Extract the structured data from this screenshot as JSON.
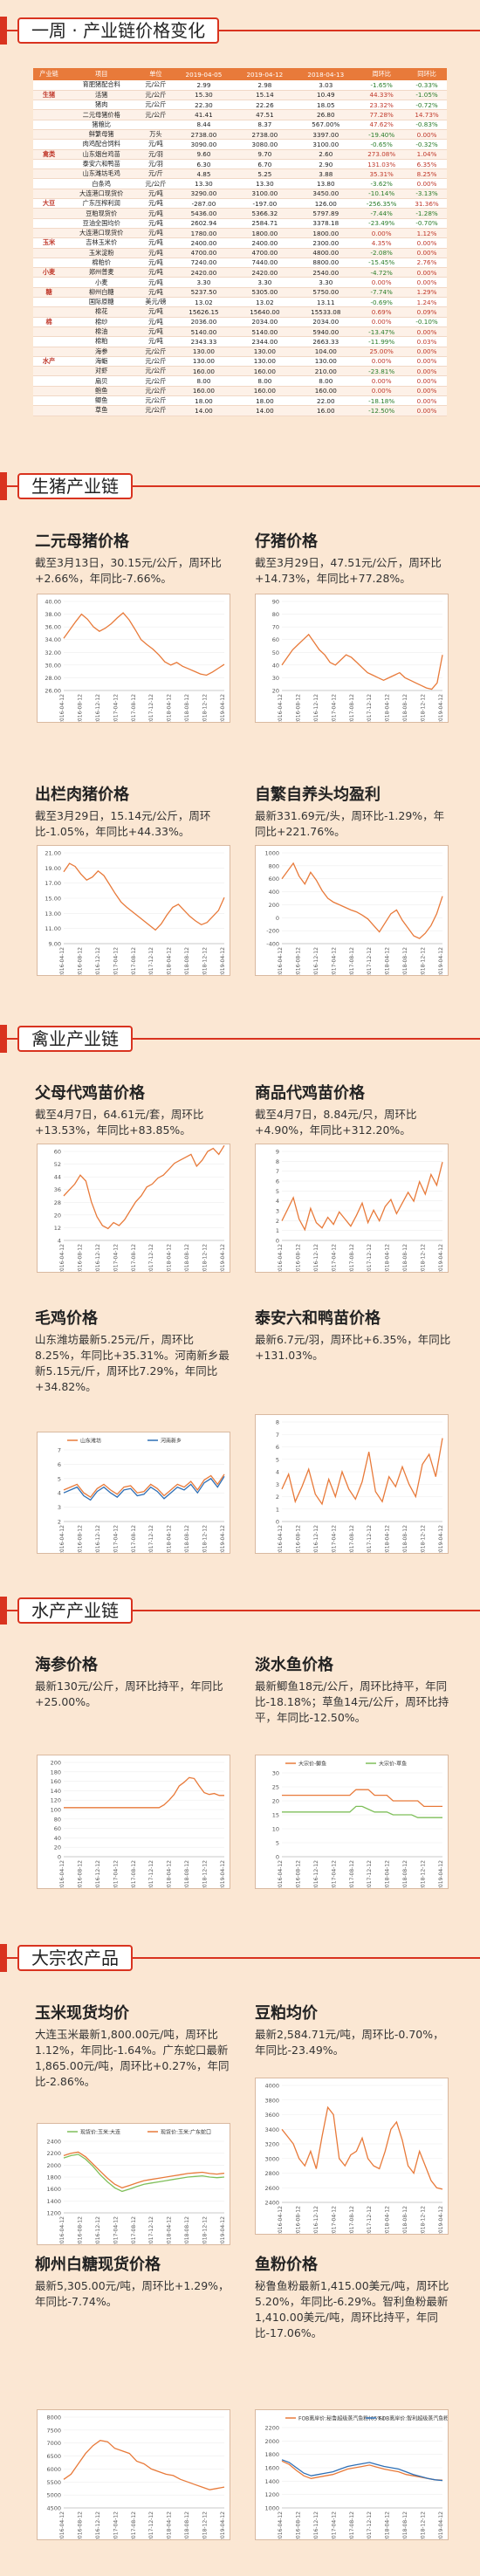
{
  "sections": {
    "weekly": "一周 · 产业链价格变化",
    "hog": "生猪产业链",
    "poultry": "禽业产业链",
    "aqua": "水产产业链",
    "bulk": "大宗农产品"
  },
  "table": {
    "headers": [
      "产业链",
      "项目",
      "单位",
      "2019-04-05",
      "2019-04-12",
      "2018-04-13",
      "周环比",
      "同环比"
    ],
    "rows": [
      {
        "cat": "",
        "item": "育肥猪配合料",
        "unit": "元/公斤",
        "a": "2.99",
        "b": "2.98",
        "c": "3.03",
        "wow": "-1.65%",
        "yoy": "-0.33%"
      },
      {
        "cat": "生猪",
        "item": "活猪",
        "unit": "元/公斤",
        "a": "15.30",
        "b": "15.14",
        "c": "10.49",
        "wow": "44.33%",
        "yoy": "-1.05%"
      },
      {
        "cat": "",
        "item": "猪肉",
        "unit": "元/公斤",
        "a": "22.30",
        "b": "22.26",
        "c": "18.05",
        "wow": "23.32%",
        "yoy": "-0.72%"
      },
      {
        "cat": "",
        "item": "二元母猪价格",
        "unit": "元/公斤",
        "a": "41.41",
        "b": "47.51",
        "c": "26.80",
        "wow": "77.28%",
        "yoy": "14.73%"
      },
      {
        "cat": "",
        "item": "猪粮比",
        "unit": "",
        "a": "8.44",
        "b": "8.37",
        "c": "567.00%",
        "wow": "47.62%",
        "yoy": "-0.83%"
      },
      {
        "cat": "",
        "item": "鲜繁母猪",
        "unit": "万头",
        "a": "2738.00",
        "b": "2738.00",
        "c": "3397.00",
        "wow": "-19.40%",
        "yoy": "0.00%"
      },
      {
        "cat": "",
        "item": "肉鸡配合饲料",
        "unit": "元/吨",
        "a": "3090.00",
        "b": "3080.00",
        "c": "3100.00",
        "wow": "-0.65%",
        "yoy": "-0.32%"
      },
      {
        "cat": "禽类",
        "item": "山东烟台鸡苗",
        "unit": "元/羽",
        "a": "9.60",
        "b": "9.70",
        "c": "2.60",
        "wow": "273.08%",
        "yoy": "1.04%"
      },
      {
        "cat": "",
        "item": "泰安六和鸭苗",
        "unit": "元/羽",
        "a": "6.30",
        "b": "6.70",
        "c": "2.90",
        "wow": "131.03%",
        "yoy": "6.35%"
      },
      {
        "cat": "",
        "item": "山东潍坊毛鸡",
        "unit": "元/斤",
        "a": "4.85",
        "b": "5.25",
        "c": "3.88",
        "wow": "35.31%",
        "yoy": "8.25%"
      },
      {
        "cat": "",
        "item": "白条鸡",
        "unit": "元/公斤",
        "a": "13.30",
        "b": "13.30",
        "c": "13.80",
        "wow": "-3.62%",
        "yoy": "0.00%"
      },
      {
        "cat": "",
        "item": "大连港口现货价",
        "unit": "元/吨",
        "a": "3290.00",
        "b": "3100.00",
        "c": "3450.00",
        "wow": "-10.14%",
        "yoy": "-3.13%"
      },
      {
        "cat": "大豆",
        "item": "广东压榨利润",
        "unit": "元/吨",
        "a": "-287.00",
        "b": "-197.00",
        "c": "126.00",
        "wow": "-256.35%",
        "yoy": "31.36%"
      },
      {
        "cat": "",
        "item": "豆粕现货价",
        "unit": "元/吨",
        "a": "5436.00",
        "b": "5366.32",
        "c": "5797.89",
        "wow": "-7.44%",
        "yoy": "-1.28%"
      },
      {
        "cat": "",
        "item": "豆油全国均价",
        "unit": "元/吨",
        "a": "2602.94",
        "b": "2584.71",
        "c": "3378.18",
        "wow": "-23.49%",
        "yoy": "-0.70%"
      },
      {
        "cat": "",
        "item": "大连港口现货价",
        "unit": "元/吨",
        "a": "1780.00",
        "b": "1800.00",
        "c": "1800.00",
        "wow": "0.00%",
        "yoy": "1.12%"
      },
      {
        "cat": "玉米",
        "item": "吉林玉米价",
        "unit": "元/吨",
        "a": "2400.00",
        "b": "2400.00",
        "c": "2300.00",
        "wow": "4.35%",
        "yoy": "0.00%"
      },
      {
        "cat": "",
        "item": "玉米淀粉",
        "unit": "元/吨",
        "a": "4700.00",
        "b": "4700.00",
        "c": "4800.00",
        "wow": "-2.08%",
        "yoy": "0.00%"
      },
      {
        "cat": "",
        "item": "棉粕价",
        "unit": "元/吨",
        "a": "7240.00",
        "b": "7440.00",
        "c": "8800.00",
        "wow": "-15.45%",
        "yoy": "2.76%"
      },
      {
        "cat": "小麦",
        "item": "郑州普麦",
        "unit": "元/吨",
        "a": "2420.00",
        "b": "2420.00",
        "c": "2540.00",
        "wow": "-4.72%",
        "yoy": "0.00%"
      },
      {
        "cat": "",
        "item": "小麦",
        "unit": "元/吨",
        "a": "3.30",
        "b": "3.30",
        "c": "3.30",
        "wow": "0.00%",
        "yoy": "0.00%"
      },
      {
        "cat": "糖",
        "item": "柳州白糖",
        "unit": "元/吨",
        "a": "5237.50",
        "b": "5305.00",
        "c": "5750.00",
        "wow": "-7.74%",
        "yoy": "1.29%"
      },
      {
        "cat": "",
        "item": "国际原糖",
        "unit": "美元/磅",
        "a": "13.02",
        "b": "13.02",
        "c": "13.11",
        "wow": "-0.69%",
        "yoy": "1.24%"
      },
      {
        "cat": "",
        "item": "棉花",
        "unit": "元/吨",
        "a": "15626.15",
        "b": "15640.00",
        "c": "15533.08",
        "wow": "0.69%",
        "yoy": "0.09%"
      },
      {
        "cat": "棉",
        "item": "棉纱",
        "unit": "元/吨",
        "a": "2036.00",
        "b": "2034.00",
        "c": "2034.00",
        "wow": "0.00%",
        "yoy": "-0.10%"
      },
      {
        "cat": "",
        "item": "棉油",
        "unit": "元/吨",
        "a": "5140.00",
        "b": "5140.00",
        "c": "5940.00",
        "wow": "-13.47%",
        "yoy": "0.00%"
      },
      {
        "cat": "",
        "item": "棉粕",
        "unit": "元/吨",
        "a": "2343.33",
        "b": "2344.00",
        "c": "2663.33",
        "wow": "-11.99%",
        "yoy": "0.03%"
      },
      {
        "cat": "",
        "item": "海参",
        "unit": "元/公斤",
        "a": "130.00",
        "b": "130.00",
        "c": "104.00",
        "wow": "25.00%",
        "yoy": "0.00%"
      },
      {
        "cat": "水产",
        "item": "海蛎",
        "unit": "元/公斤",
        "a": "130.00",
        "b": "130.00",
        "c": "130.00",
        "wow": "0.00%",
        "yoy": "0.00%"
      },
      {
        "cat": "",
        "item": "对虾",
        "unit": "元/公斤",
        "a": "160.00",
        "b": "160.00",
        "c": "210.00",
        "wow": "-23.81%",
        "yoy": "0.00%"
      },
      {
        "cat": "",
        "item": "扇贝",
        "unit": "元/公斤",
        "a": "8.00",
        "b": "8.00",
        "c": "8.00",
        "wow": "0.00%",
        "yoy": "0.00%"
      },
      {
        "cat": "",
        "item": "鲍鱼",
        "unit": "元/公斤",
        "a": "160.00",
        "b": "160.00",
        "c": "160.00",
        "wow": "0.00%",
        "yoy": "0.00%"
      },
      {
        "cat": "",
        "item": "鲫鱼",
        "unit": "元/公斤",
        "a": "18.00",
        "b": "18.00",
        "c": "22.00",
        "wow": "-18.18%",
        "yoy": "0.00%"
      },
      {
        "cat": "",
        "item": "草鱼",
        "unit": "元/公斤",
        "a": "14.00",
        "b": "14.00",
        "c": "16.00",
        "wow": "-12.50%",
        "yoy": "0.00%"
      }
    ]
  },
  "cards": {
    "sow": {
      "title": "二元母猪价格",
      "text": "截至3月13日，30.15元/公斤，周环比+2.66%，年同比-7.66%。"
    },
    "piglet": {
      "title": "仔猪价格",
      "text": "截至3月29日，47.51元/公斤，周环比+14.73%，年同比+77.28%。"
    },
    "hog": {
      "title": "出栏肉猪价格",
      "text": "截至3月29日，15.14元/公斤，周环比-1.05%，年同比+44.33%。"
    },
    "profit": {
      "title": "自繁自养头均盈利",
      "text": "最新331.69元/头，周环比-1.29%，年同比+221.76%。"
    },
    "parent": {
      "title": "父母代鸡苗价格",
      "text": "截至4月7日，64.61元/套，周环比+13.53%，年同比+83.85%。"
    },
    "chick": {
      "title": "商品代鸡苗价格",
      "text": "截至4月7日，8.84元/只，周环比+4.90%，年同比+312.20%。"
    },
    "broiler": {
      "title": "毛鸡价格",
      "text": "山东潍坊最新5.25元/斤，周环比8.25%，年同比+35.31%。河南新乡最新5.15元/斤，周环比7.29%，年同比+34.82%。"
    },
    "duck": {
      "title": "泰安六和鸭苗价格",
      "text": "最新6.7元/羽，周环比+6.35%，年同比+131.03%。"
    },
    "seacuc": {
      "title": "海参价格",
      "text": "最新130元/公斤，周环比持平，年同比+25.00%。"
    },
    "fresh": {
      "title": "淡水鱼价格",
      "text": "最新鲫鱼18元/公斤，周环比持平，年同比-18.18%；草鱼14元/公斤，周环比持平，年同比-12.50%。"
    },
    "corn": {
      "title": "玉米现货均价",
      "text": "大连玉米最新1,800.00元/吨，周环比1.12%，年同比-1.64%。广东蛇口最新1,865.00元/吨，周环比+0.27%，年同比-2.86%。"
    },
    "meal": {
      "title": "豆粕均价",
      "text": "最新2,584.71元/吨，周环比-0.70%，年同比-23.49%。"
    },
    "sugar": {
      "title": "柳州白糖现货价格",
      "text": "最新5,305.00元/吨，周环比+1.29%，年同比-7.74%。"
    },
    "fish": {
      "title": "鱼粉价格",
      "text": "秘鲁鱼粉最新1,415.00美元/吨，周环比5.20%，年同比-6.29%。智利鱼粉最新1,410.00美元/吨，周环比持平，年同比-17.06%。"
    }
  },
  "chart_data": [
    {
      "id": "sow",
      "type": "line",
      "ylim": [
        26,
        40
      ],
      "yticks": [
        "40.00",
        "38.00",
        "36.00",
        "34.00",
        "32.00",
        "30.00",
        "28.00",
        "26.00"
      ],
      "color": "#e87a3a",
      "values": [
        34.2,
        35.5,
        36.8,
        38.0,
        37.2,
        36.0,
        35.3,
        35.8,
        36.5,
        37.4,
        38.2,
        37.1,
        35.6,
        34.0,
        33.2,
        32.5,
        31.6,
        30.5,
        30.0,
        30.4,
        29.8,
        29.4,
        29.0,
        28.6,
        28.4,
        28.9,
        29.5,
        30.1
      ]
    },
    {
      "id": "piglet",
      "type": "line",
      "ylim": [
        20,
        90
      ],
      "yticks": [
        "90",
        "80",
        "70",
        "60",
        "50",
        "40",
        "30",
        "20"
      ],
      "color": "#e87a3a",
      "values": [
        40,
        46,
        52,
        56,
        60,
        64,
        58,
        52,
        48,
        42,
        40,
        44,
        48,
        46,
        42,
        38,
        34,
        32,
        30,
        28,
        30,
        32,
        34,
        30,
        28,
        26,
        24,
        22,
        21,
        26,
        48
      ]
    },
    {
      "id": "hog",
      "type": "line",
      "ylim": [
        9,
        21
      ],
      "yticks": [
        "21.00",
        "19.00",
        "17.00",
        "15.00",
        "13.00",
        "11.00",
        "9.00"
      ],
      "color": "#e87a3a",
      "values": [
        18.5,
        19.6,
        19.2,
        18.2,
        17.4,
        17.8,
        18.6,
        18.0,
        16.8,
        15.6,
        14.5,
        13.8,
        13.2,
        12.6,
        12.0,
        11.4,
        10.8,
        11.6,
        12.8,
        13.8,
        14.2,
        13.4,
        12.6,
        12.0,
        11.5,
        11.8,
        12.6,
        13.4,
        15.1
      ]
    },
    {
      "id": "profit",
      "type": "line",
      "ylim": [
        -400,
        1000
      ],
      "yticks": [
        "1000",
        "800",
        "600",
        "400",
        "200",
        "0",
        "-200",
        "-400"
      ],
      "color": "#e87a3a",
      "values": [
        600,
        720,
        840,
        640,
        520,
        700,
        580,
        420,
        300,
        240,
        200,
        160,
        120,
        90,
        40,
        -20,
        -120,
        -220,
        -80,
        60,
        120,
        -40,
        -160,
        -280,
        -320,
        -240,
        -120,
        60,
        331
      ]
    },
    {
      "id": "parent",
      "type": "line",
      "ylim": [
        0,
        60
      ],
      "yticks": [
        "60",
        "52",
        "44",
        "36",
        "28",
        "20",
        "12",
        "4"
      ],
      "color": "#e87a3a",
      "values": [
        30,
        34,
        38,
        44,
        40,
        26,
        16,
        10,
        8,
        12,
        10,
        14,
        20,
        26,
        30,
        36,
        38,
        42,
        44,
        48,
        52,
        54,
        56,
        58,
        50,
        54,
        60,
        62,
        58,
        64
      ]
    },
    {
      "id": "chick",
      "type": "line",
      "ylim": [
        0,
        10
      ],
      "yticks": [
        "9",
        "8",
        "7",
        "6",
        "5",
        "4",
        "3",
        "2",
        "1",
        "0"
      ],
      "color": "#e87a3a",
      "values": [
        2.2,
        3.5,
        4.8,
        2.4,
        1.2,
        3.6,
        2.0,
        1.4,
        2.6,
        1.8,
        3.2,
        2.4,
        1.6,
        2.8,
        4.2,
        2.0,
        3.4,
        2.2,
        3.8,
        4.6,
        3.0,
        4.2,
        5.4,
        4.4,
        6.6,
        5.2,
        7.4,
        6.2,
        8.8
      ]
    },
    {
      "id": "broiler",
      "type": "line",
      "ylim": [
        2,
        7
      ],
      "yticks": [
        "7",
        "6",
        "5",
        "4",
        "3",
        "2"
      ],
      "color": "#e87a3a",
      "color2": "#2e6fb5",
      "legend": [
        "山东潍坊",
        "河南新乡"
      ],
      "values": [
        4.2,
        4.4,
        4.6,
        4.0,
        3.7,
        4.3,
        4.6,
        4.2,
        3.9,
        4.4,
        4.5,
        4.0,
        4.1,
        4.6,
        4.3,
        3.8,
        4.2,
        4.6,
        4.4,
        4.8,
        4.2,
        4.9,
        5.2,
        4.6,
        5.3
      ],
      "values2": [
        4.0,
        4.2,
        4.4,
        3.8,
        3.5,
        4.1,
        4.4,
        4.0,
        3.7,
        4.2,
        4.3,
        3.8,
        3.9,
        4.4,
        4.1,
        3.6,
        4.0,
        4.4,
        4.2,
        4.6,
        4.0,
        4.7,
        5.0,
        4.4,
        5.15
      ]
    },
    {
      "id": "duck",
      "type": "line",
      "ylim": [
        0,
        8
      ],
      "yticks": [
        "8",
        "7",
        "6",
        "5",
        "4",
        "3",
        "2",
        "1",
        "0"
      ],
      "color": "#e87a3a",
      "values": [
        2.6,
        3.8,
        1.6,
        2.8,
        4.2,
        2.2,
        1.4,
        3.4,
        2.0,
        4.0,
        2.6,
        1.8,
        3.2,
        5.6,
        2.4,
        1.6,
        3.6,
        2.8,
        4.4,
        3.0,
        2.0,
        4.6,
        5.4,
        3.6,
        6.7
      ]
    },
    {
      "id": "seacuc",
      "type": "line",
      "ylim": [
        0,
        200
      ],
      "yticks": [
        "200",
        "180",
        "160",
        "140",
        "120",
        "100",
        "80",
        "60",
        "40",
        "20",
        "0"
      ],
      "color": "#e87a3a",
      "values": [
        104,
        104,
        104,
        104,
        104,
        104,
        104,
        104,
        104,
        104,
        104,
        104,
        104,
        104,
        104,
        104,
        104,
        104,
        104,
        104,
        110,
        120,
        132,
        150,
        158,
        168,
        166,
        150,
        136,
        132,
        134,
        130,
        130
      ]
    },
    {
      "id": "fresh",
      "type": "line",
      "ylim": [
        0,
        30
      ],
      "yticks": [
        "30",
        "25",
        "20",
        "15",
        "10",
        "5",
        "0"
      ],
      "color": "#e87a3a",
      "color2": "#7fbf5a",
      "legend": [
        "大宗价-鲫鱼",
        "大宗价-草鱼"
      ],
      "values": [
        22,
        22,
        22,
        22,
        22,
        22,
        22,
        22,
        22,
        22,
        22,
        22,
        24,
        24,
        24,
        22,
        22,
        22,
        20,
        20,
        20,
        20,
        20,
        18,
        18,
        18,
        18
      ],
      "values2": [
        16,
        16,
        16,
        16,
        16,
        16,
        16,
        16,
        16,
        16,
        16,
        16,
        18,
        18,
        17,
        16,
        16,
        16,
        15,
        15,
        15,
        15,
        14,
        14,
        14,
        14,
        14
      ]
    },
    {
      "id": "corn",
      "type": "line",
      "ylim": [
        1200,
        2400
      ],
      "yticks": [
        "2400",
        "2200",
        "2000",
        "1800",
        "1600",
        "1400",
        "1200"
      ],
      "color": "#7fbf5a",
      "color2": "#e87a3a",
      "legend": [
        "现货价:玉米:大连",
        "现货价:玉米:广东蛇口"
      ],
      "values": [
        2120,
        2160,
        2180,
        2100,
        1980,
        1840,
        1720,
        1620,
        1560,
        1600,
        1640,
        1680,
        1700,
        1720,
        1740,
        1760,
        1780,
        1800,
        1810,
        1820,
        1800,
        1790,
        1800
      ],
      "values2": [
        2160,
        2200,
        2220,
        2140,
        2020,
        1900,
        1780,
        1680,
        1620,
        1660,
        1700,
        1740,
        1760,
        1780,
        1800,
        1820,
        1840,
        1860,
        1870,
        1880,
        1860,
        1850,
        1865
      ]
    },
    {
      "id": "meal",
      "type": "line",
      "ylim": [
        2400,
        4000
      ],
      "yticks": [
        "4000",
        "3800",
        "3600",
        "3400",
        "3200",
        "3000",
        "2800",
        "2600",
        "2400"
      ],
      "color": "#e87a3a",
      "values": [
        3400,
        3300,
        3200,
        3000,
        2900,
        3100,
        2860,
        3300,
        3700,
        3600,
        3000,
        2900,
        3050,
        3100,
        3280,
        3000,
        2900,
        2860,
        3100,
        3400,
        3500,
        3250,
        2900,
        2800,
        3100,
        2900,
        2700,
        2600,
        2580
      ]
    },
    {
      "id": "sugar",
      "type": "line",
      "ylim": [
        4500,
        8000
      ],
      "yticks": [
        "8000",
        "7500",
        "7000",
        "6500",
        "6000",
        "5500",
        "5000",
        "4500"
      ],
      "color": "#e87a3a",
      "values": [
        5600,
        5800,
        6200,
        6600,
        6900,
        7100,
        7050,
        6800,
        6700,
        6600,
        6300,
        6200,
        6000,
        5900,
        5800,
        5750,
        5600,
        5500,
        5400,
        5300,
        5200,
        5250,
        5305
      ]
    },
    {
      "id": "fish",
      "type": "line",
      "ylim": [
        1000,
        2200
      ],
      "yticks": [
        "2200",
        "2000",
        "1800",
        "1600",
        "1400",
        "1200",
        "1000"
      ],
      "color": "#e87a3a",
      "color2": "#2e6fb5",
      "legend": [
        "FOB离岸价:秘鲁超级蒸汽鱼粉(65%)",
        "FOB离岸价:智利超级蒸汽鱼粉(65%)"
      ],
      "values": [
        1700,
        1650,
        1560,
        1480,
        1440,
        1460,
        1480,
        1500,
        1540,
        1580,
        1600,
        1620,
        1640,
        1610,
        1580,
        1560,
        1540,
        1500,
        1480,
        1460,
        1440,
        1420,
        1415
      ],
      "values2": [
        1720,
        1680,
        1600,
        1520,
        1480,
        1500,
        1520,
        1540,
        1580,
        1620,
        1640,
        1660,
        1680,
        1650,
        1620,
        1600,
        1580,
        1540,
        1500,
        1470,
        1440,
        1420,
        1410
      ]
    }
  ],
  "xlabels": [
    "2016-04-12",
    "2016-08-12",
    "2016-12-12",
    "2017-04-12",
    "2017-08-12",
    "2017-12-12",
    "2018-04-12",
    "2018-08-12",
    "2018-12-12",
    "2019-04-12"
  ]
}
